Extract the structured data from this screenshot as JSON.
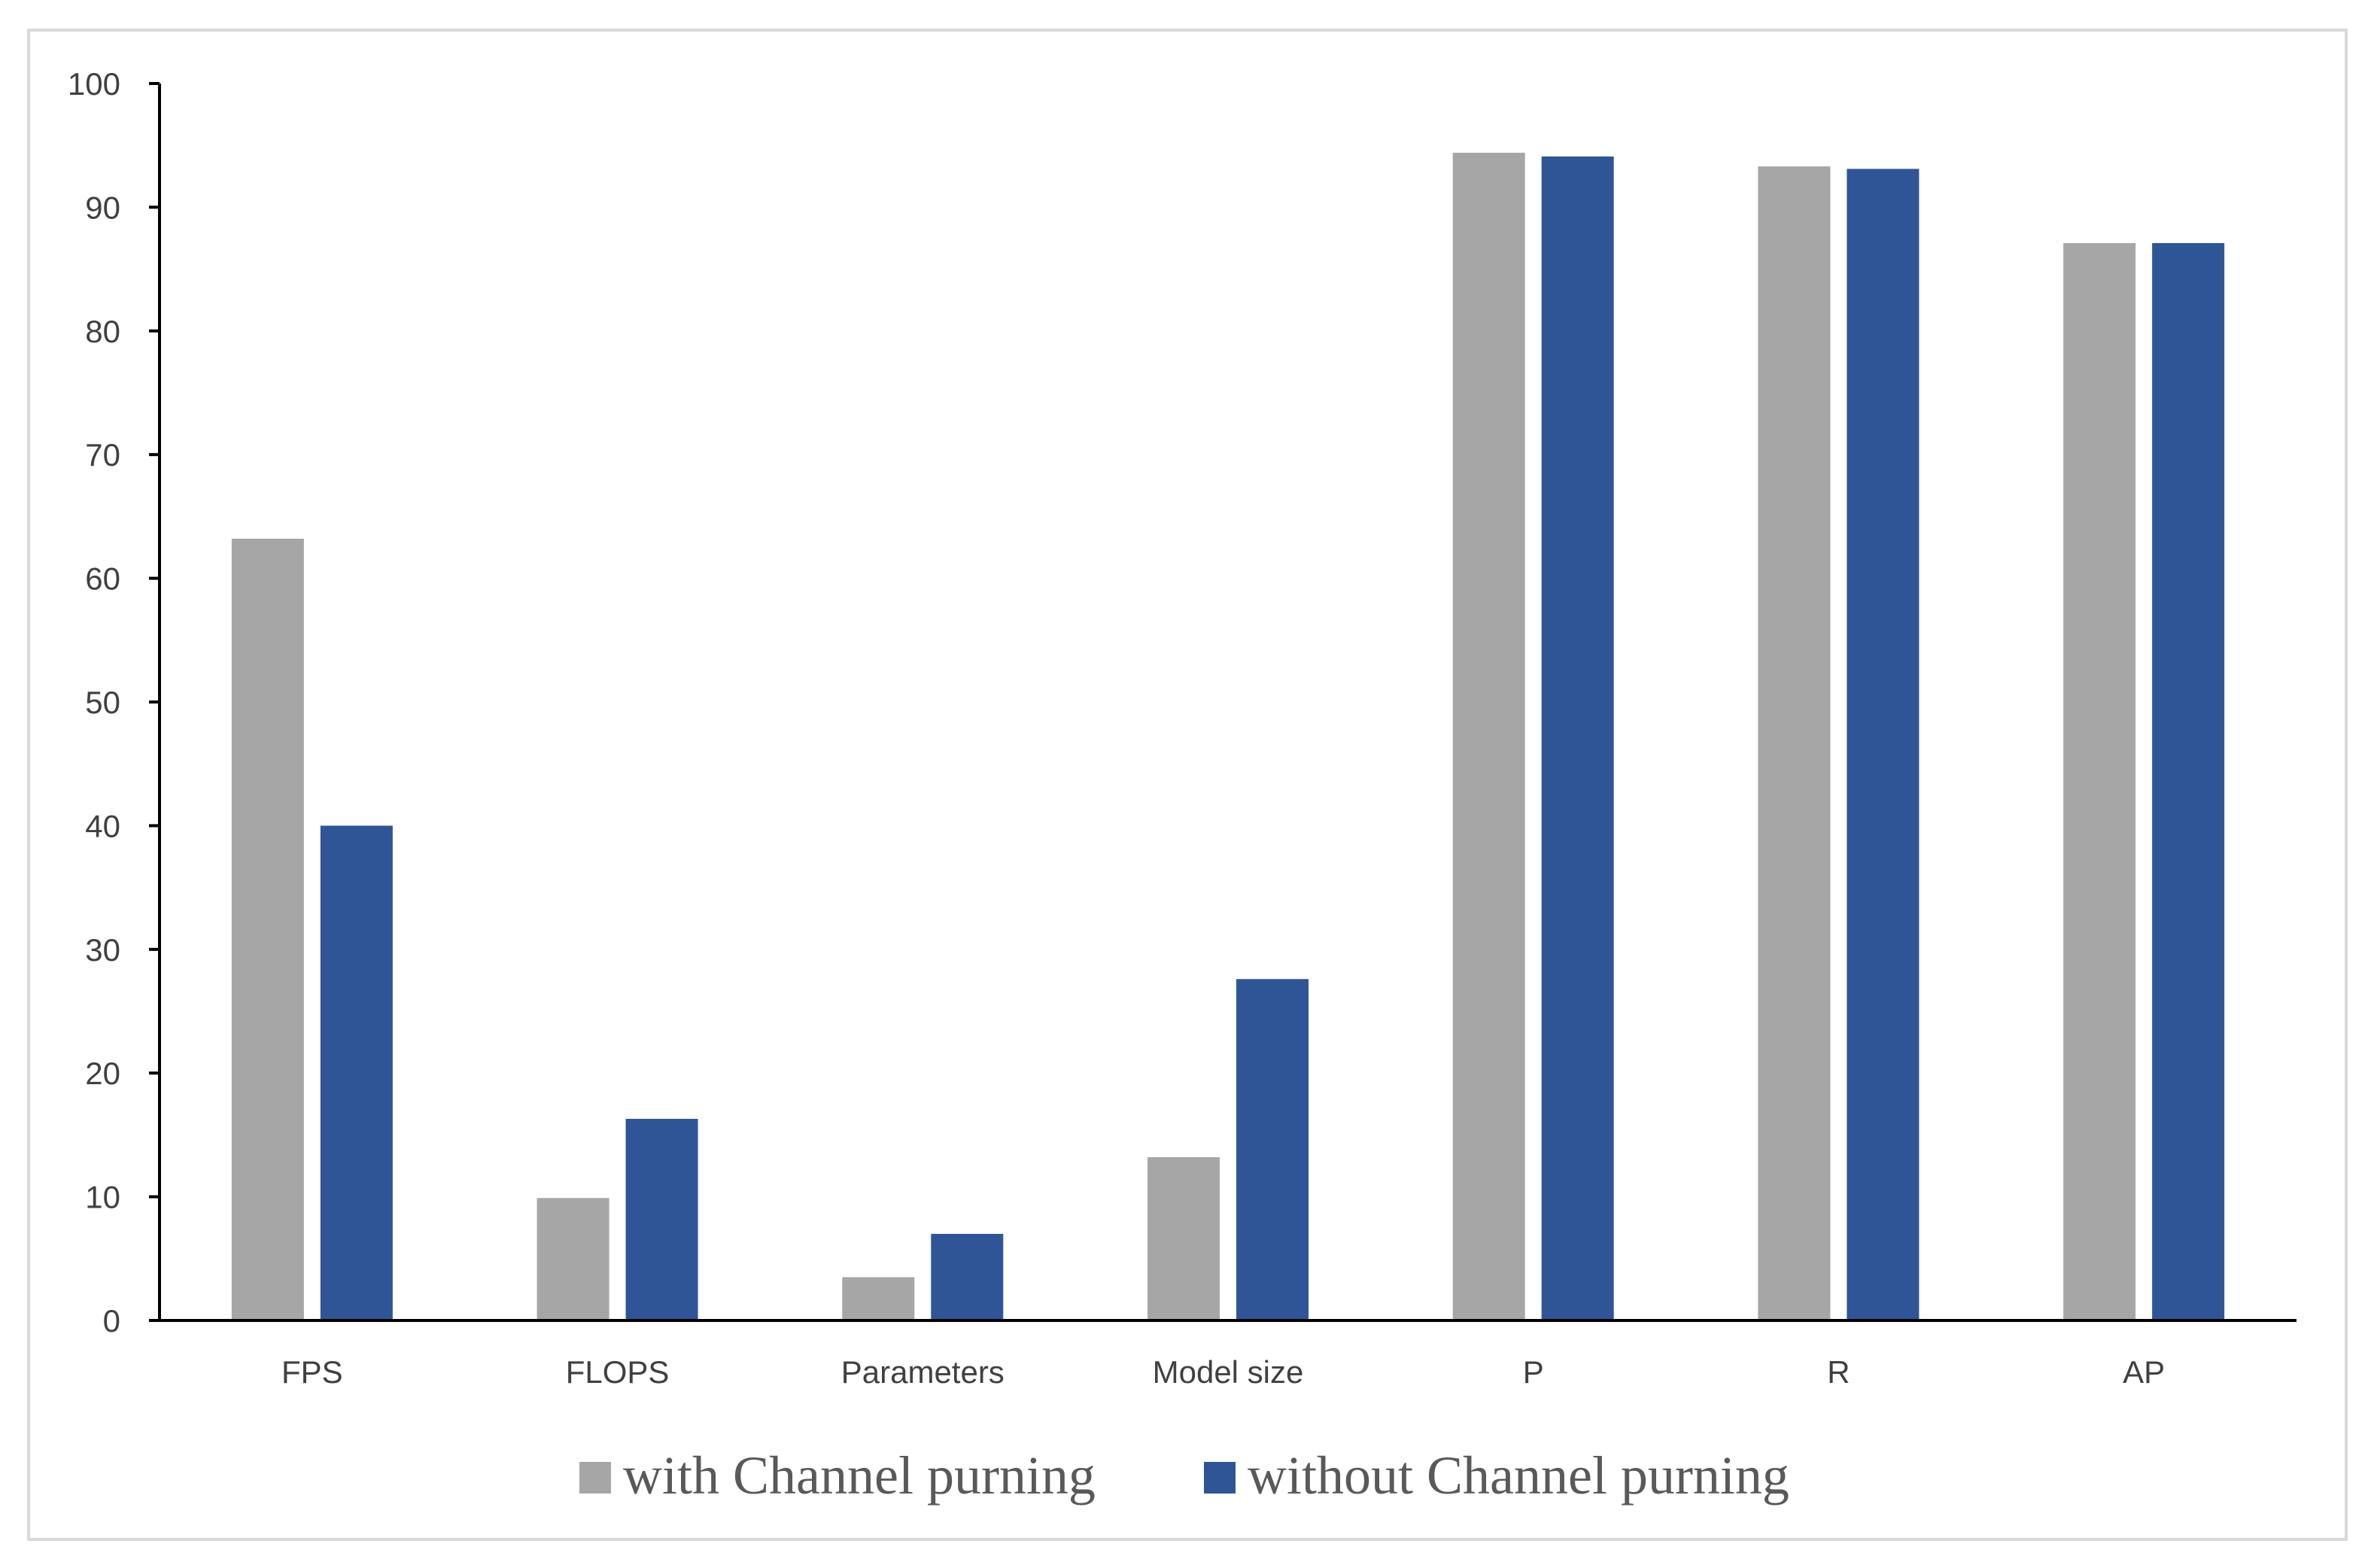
{
  "chart_data": {
    "type": "bar",
    "categories": [
      "FPS",
      "FLOPS",
      "Parameters",
      "Model size",
      "P",
      "R",
      "AP"
    ],
    "series": [
      {
        "name": "with Channel purning",
        "values": [
          63.2,
          9.9,
          3.5,
          13.2,
          94.4,
          93.3,
          87.1
        ],
        "color": "#a6a6a6"
      },
      {
        "name": "without Channel purning",
        "values": [
          40.0,
          16.3,
          7.0,
          27.6,
          94.1,
          93.1,
          87.1
        ],
        "color": "#2f5597"
      }
    ],
    "ylim": [
      0,
      100
    ],
    "yticks": [
      0,
      10,
      20,
      30,
      40,
      50,
      60,
      70,
      80,
      90,
      100
    ],
    "title": "",
    "xlabel": "",
    "ylabel": "",
    "grid": false,
    "legend_position": "bottom"
  }
}
